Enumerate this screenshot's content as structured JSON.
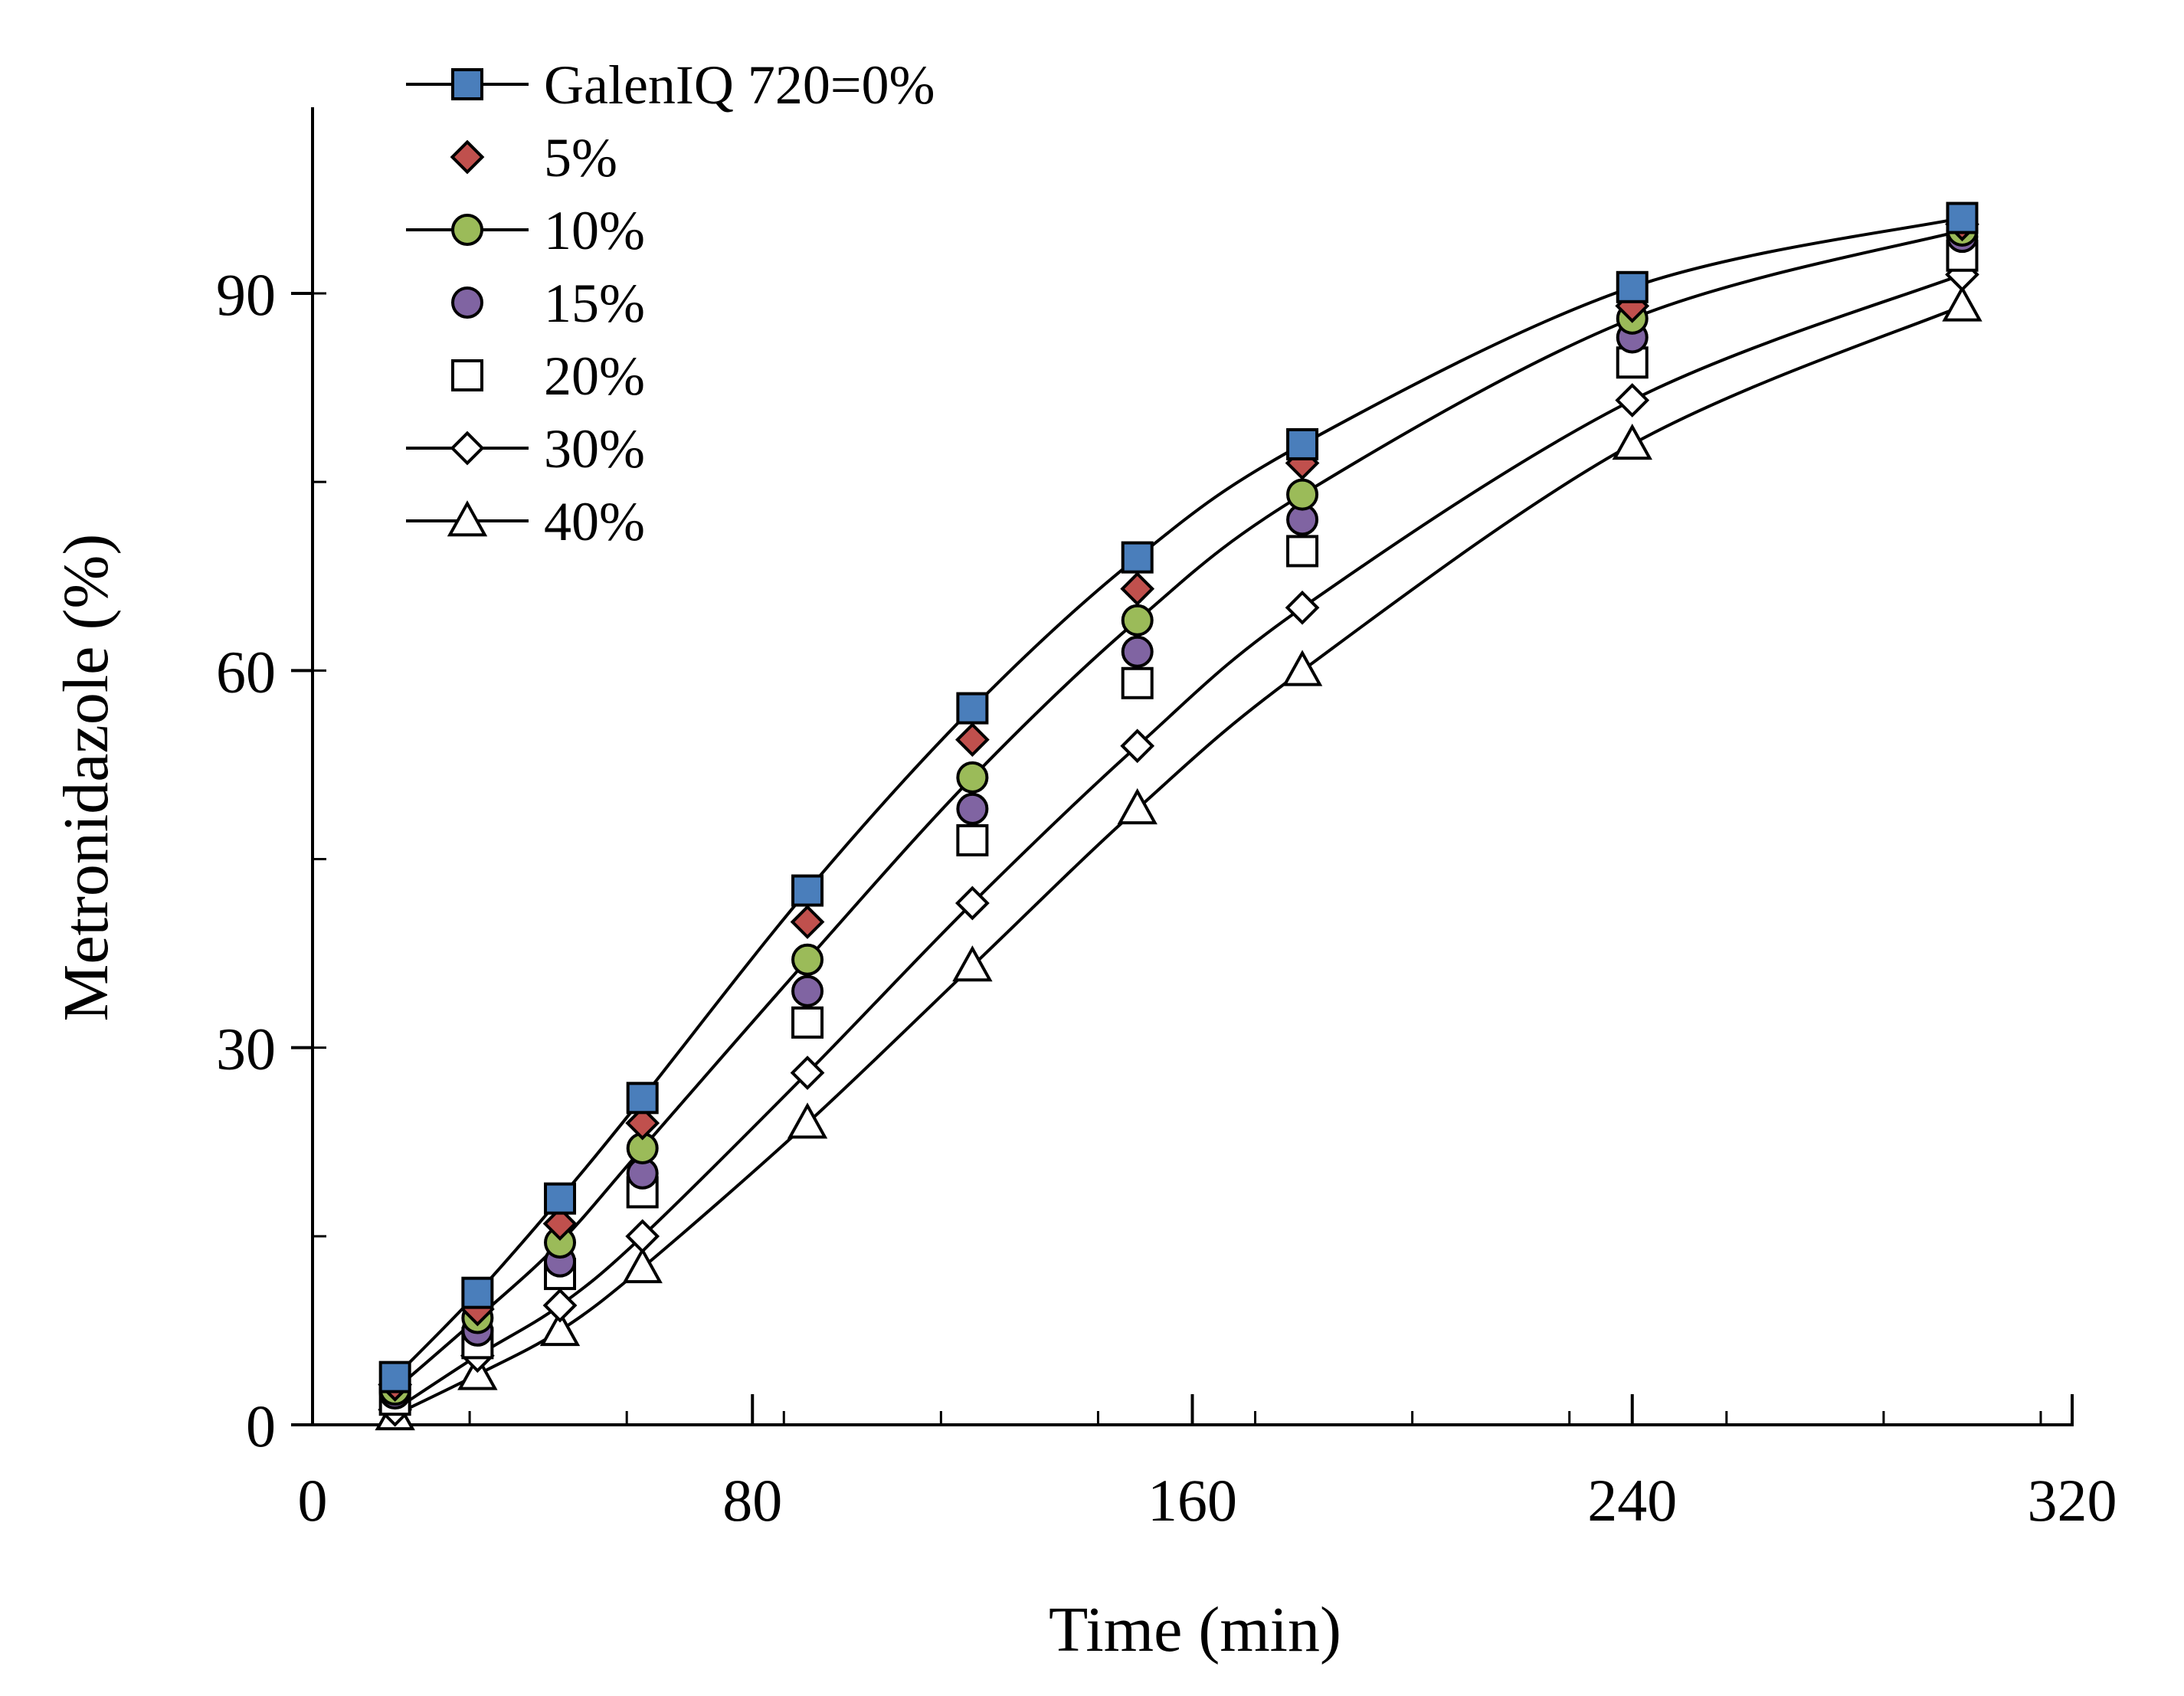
{
  "chart_data": {
    "type": "line",
    "title": "",
    "xlabel": "Time  (min)",
    "ylabel": "Metronidazole  (%)",
    "xlim": [
      0,
      320
    ],
    "ylim": [
      0,
      100
    ],
    "xticks": [
      0,
      80,
      160,
      240,
      320
    ],
    "yticks": [
      0,
      30,
      60,
      90
    ],
    "x": [
      15,
      30,
      45,
      60,
      90,
      120,
      150,
      180,
      240,
      300
    ],
    "legend_position": "top-left",
    "series": [
      {
        "name": "GalenIQ 720=0%",
        "marker": "square",
        "fill": "#4a7ebb",
        "line": true,
        "values": [
          3.8,
          10.5,
          18.0,
          26.0,
          42.5,
          57.0,
          69.0,
          78.0,
          90.5,
          96.0
        ]
      },
      {
        "name": "5%",
        "marker": "diamond",
        "fill": "#c0504d",
        "line": false,
        "values": [
          3.2,
          9.2,
          16.0,
          24.0,
          40.0,
          54.5,
          66.5,
          76.5,
          89.0,
          95.5
        ]
      },
      {
        "name": "10%",
        "marker": "circle",
        "fill": "#9bbb59",
        "line": true,
        "values": [
          2.8,
          8.5,
          14.5,
          22.0,
          37.0,
          51.5,
          64.0,
          74.0,
          88.0,
          95.0
        ]
      },
      {
        "name": "15%",
        "marker": "circle",
        "fill": "#8064a2",
        "line": false,
        "values": [
          2.5,
          7.5,
          13.0,
          20.0,
          34.5,
          49.0,
          61.5,
          72.0,
          86.5,
          94.5
        ]
      },
      {
        "name": "20%",
        "marker": "square",
        "fill": "#ffffff",
        "line": false,
        "values": [
          2.0,
          6.5,
          12.0,
          18.5,
          32.0,
          46.5,
          59.0,
          69.5,
          84.5,
          93.0
        ]
      },
      {
        "name": "30%",
        "marker": "diamond",
        "fill": "#ffffff",
        "line": true,
        "values": [
          1.2,
          5.5,
          9.5,
          15.0,
          28.0,
          41.5,
          54.0,
          65.0,
          81.5,
          91.5
        ]
      },
      {
        "name": "40%",
        "marker": "triangle",
        "fill": "#ffffff",
        "line": true,
        "values": [
          0.8,
          4.0,
          7.5,
          12.5,
          24.0,
          36.5,
          49.0,
          60.0,
          78.0,
          89.0
        ]
      }
    ]
  }
}
